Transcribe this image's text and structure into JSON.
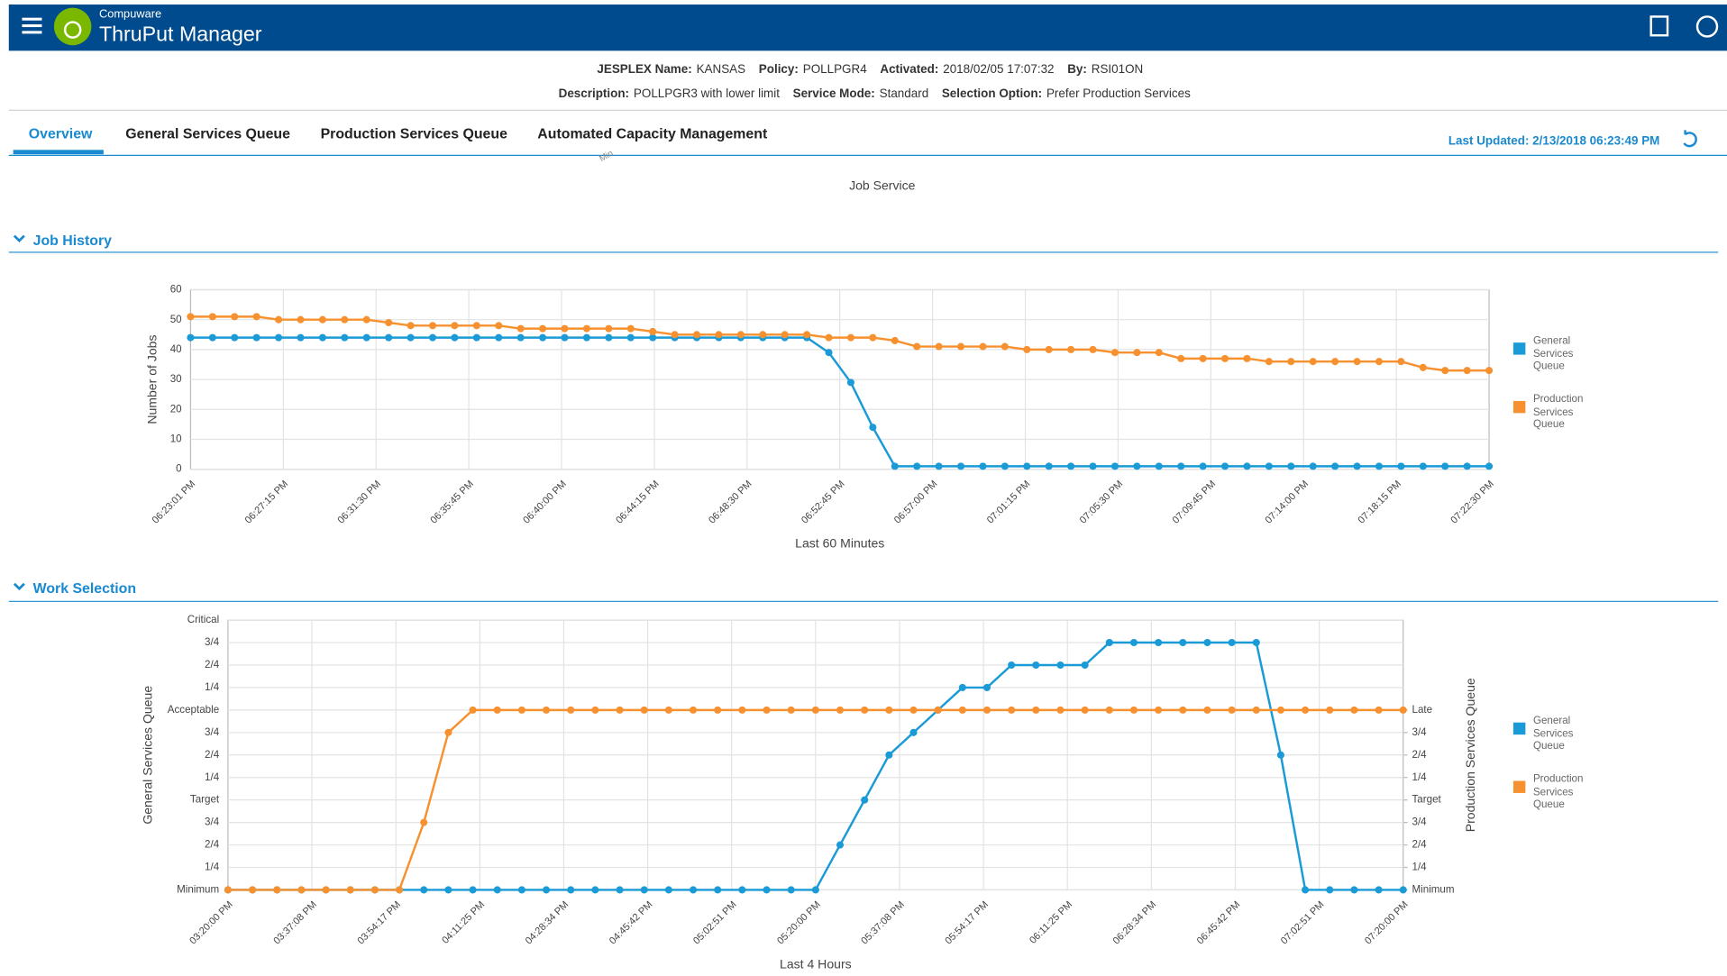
{
  "header": {
    "brand": "Compuware",
    "product": "ThruPut Manager"
  },
  "info_lines": [
    [
      {
        "label": "JESPLEX Name:",
        "value": "KANSAS"
      },
      {
        "label": "Policy:",
        "value": "POLLPGR4"
      },
      {
        "label": "Activated:",
        "value": "2018/02/05 17:07:32"
      },
      {
        "label": "By:",
        "value": "RSI01ON"
      }
    ],
    [
      {
        "label": "Description:",
        "value": "POLLPGR3 with lower limit"
      },
      {
        "label": "Service Mode:",
        "value": "Standard"
      },
      {
        "label": "Selection Option:",
        "value": "Prefer Production Services"
      }
    ]
  ],
  "tabs": [
    "Overview",
    "General Services Queue",
    "Production Services Queue",
    "Automated Capacity Management"
  ],
  "last_updated": {
    "label": "Last Updated:",
    "value": "2/13/2018 06:23:49 PM"
  },
  "fragment": {
    "axis_label": "Min",
    "title": "Job Service"
  },
  "chart_data": [
    {
      "type": "line",
      "title": "Job History",
      "xlabel": "Last 60 Minutes",
      "ylabel": "Number of Jobs",
      "grid": true,
      "legend": "right",
      "xtick_labels": [
        "06:23:01 PM",
        "06:27:15 PM",
        "06:31:30 PM",
        "06:35:45 PM",
        "06:40:00 PM",
        "06:44:15 PM",
        "06:48:30 PM",
        "06:52:45 PM",
        "06:57:00 PM",
        "07:01:15 PM",
        "07:05:30 PM",
        "07:09:45 PM",
        "07:14:00 PM",
        "07:18:15 PM",
        "07:22:30 PM"
      ],
      "ylim": [
        0,
        60
      ],
      "yticks": [
        0,
        10,
        20,
        30,
        40,
        50,
        60
      ],
      "series": [
        {
          "name": "General Services Queue",
          "color": "#1a9ad6",
          "values": [
            44,
            44,
            44,
            44,
            44,
            44,
            44,
            44,
            44,
            44,
            44,
            44,
            44,
            44,
            44,
            44,
            44,
            44,
            44,
            44,
            44,
            44,
            44,
            44,
            44,
            44,
            44,
            44,
            44,
            39,
            29,
            14,
            1,
            1,
            1,
            1,
            1,
            1,
            1,
            1,
            1,
            1,
            1,
            1,
            1,
            1,
            1,
            1,
            1,
            1,
            1,
            1,
            1,
            1,
            1,
            1,
            1,
            1,
            1,
            1
          ]
        },
        {
          "name": "Production Services Queue",
          "color": "#f7912f",
          "values": [
            51,
            51,
            51,
            51,
            50,
            50,
            50,
            50,
            50,
            49,
            48,
            48,
            48,
            48,
            48,
            47,
            47,
            47,
            47,
            47,
            47,
            46,
            45,
            45,
            45,
            45,
            45,
            45,
            45,
            44,
            44,
            44,
            43,
            41,
            41,
            41,
            41,
            41,
            40,
            40,
            40,
            40,
            39,
            39,
            39,
            37,
            37,
            37,
            37,
            36,
            36,
            36,
            36,
            36,
            36,
            36,
            34,
            33,
            33,
            33
          ]
        }
      ]
    },
    {
      "type": "line",
      "title": "Work Selection",
      "xlabel": "Last 4 Hours",
      "ylabel": "General Services Queue",
      "y2label": "Production Services Queue",
      "grid": true,
      "legend": "right",
      "xtick_labels": [
        "03:20:00 PM",
        "03:37:08 PM",
        "03:54:17 PM",
        "04:11:25 PM",
        "04:28:34 PM",
        "04:45:42 PM",
        "05:02:51 PM",
        "05:20:00 PM",
        "05:37:08 PM",
        "05:54:17 PM",
        "06:11:25 PM",
        "06:28:34 PM",
        "06:45:42 PM",
        "07:02:51 PM",
        "07:20:00 PM"
      ],
      "ylim": [
        0,
        12
      ],
      "yticks": [
        {
          "value": 0,
          "label": "Minimum"
        },
        {
          "value": 1,
          "label": "1/4"
        },
        {
          "value": 2,
          "label": "2/4"
        },
        {
          "value": 3,
          "label": "3/4"
        },
        {
          "value": 4,
          "label": "Target"
        },
        {
          "value": 5,
          "label": "1/4"
        },
        {
          "value": 6,
          "label": "2/4"
        },
        {
          "value": 7,
          "label": "3/4"
        },
        {
          "value": 8,
          "label": "Acceptable"
        },
        {
          "value": 9,
          "label": "1/4"
        },
        {
          "value": 10,
          "label": "2/4"
        },
        {
          "value": 11,
          "label": "3/4"
        },
        {
          "value": 12,
          "label": "Critical"
        }
      ],
      "y2lim": [
        0,
        12
      ],
      "y2ticks": [
        {
          "value": 0,
          "label": "Minimum"
        },
        {
          "value": 1,
          "label": "1/4"
        },
        {
          "value": 2,
          "label": "2/4"
        },
        {
          "value": 3,
          "label": "3/4"
        },
        {
          "value": 4,
          "label": "Target"
        },
        {
          "value": 5,
          "label": "1/4"
        },
        {
          "value": 6,
          "label": "2/4"
        },
        {
          "value": 7,
          "label": "3/4"
        },
        {
          "value": 8,
          "label": "Late"
        }
      ],
      "series": [
        {
          "name": "General Services Queue",
          "color": "#1a9ad6",
          "axis": "y",
          "values": [
            0,
            0,
            0,
            0,
            0,
            0,
            0,
            0,
            0,
            0,
            0,
            0,
            0,
            0,
            0,
            0,
            0,
            0,
            0,
            0,
            0,
            0,
            0,
            0,
            0,
            2,
            4,
            6,
            7,
            8,
            9,
            9,
            10,
            10,
            10,
            10,
            11,
            11,
            11,
            11,
            11,
            11,
            11,
            6,
            0,
            0,
            0,
            0,
            0
          ]
        },
        {
          "name": "Production Services Queue",
          "color": "#f7912f",
          "axis": "y2",
          "values": [
            0,
            0,
            0,
            0,
            0,
            0,
            0,
            0,
            3,
            7,
            8,
            8,
            8,
            8,
            8,
            8,
            8,
            8,
            8,
            8,
            8,
            8,
            8,
            8,
            8,
            8,
            8,
            8,
            8,
            8,
            8,
            8,
            8,
            8,
            8,
            8,
            8,
            8,
            8,
            8,
            8,
            8,
            8,
            8,
            8,
            8,
            8,
            8,
            8
          ]
        }
      ]
    }
  ]
}
